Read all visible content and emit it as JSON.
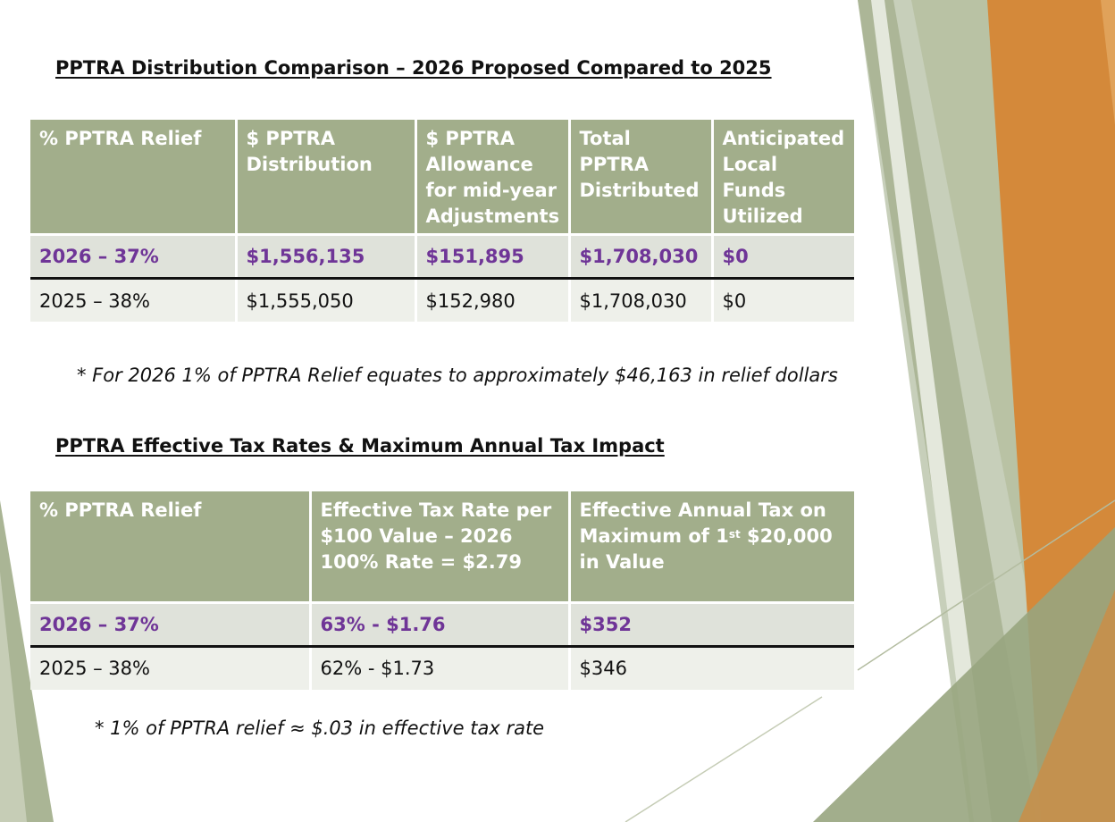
{
  "table1": {
    "title": "PPTRA Distribution Comparison – 2026 Proposed Compared to 2025",
    "headers": [
      "% PPTRA Relief",
      "$ PPTRA Distribution",
      "$ PPTRA Allowance for mid-year Adjustments",
      "Total PPTRA Distributed",
      "Anticipated Local Funds Utilized"
    ],
    "rows": [
      [
        "2026 – 37%",
        "$1,556,135",
        "$151,895",
        "$1,708,030",
        "$0"
      ],
      [
        "2025 – 38%",
        "$1,555,050",
        "$152,980",
        "$1,708,030",
        "$0"
      ]
    ],
    "footnote": "* For 2026 1% of PPTRA Relief equates to approximately $46,163 in relief dollars"
  },
  "table2": {
    "title": "PPTRA Effective Tax Rates & Maximum Annual Tax Impact",
    "headers": {
      "h0": "% PPTRA Relief",
      "h1": "Effective Tax Rate per $100 Value – 2026 100% Rate = $2.79",
      "h2_pre": "Effective Annual Tax on Maximum of 1",
      "h2_sup": "st",
      "h2_post": " $20,000 in Value"
    },
    "rows": [
      [
        "2026 – 37%",
        "63% - $1.76",
        "$352"
      ],
      [
        "2025 – 38%",
        "62% - $1.73",
        "$346"
      ]
    ],
    "footnote": "* 1% of PPTRA relief ≈ $.03 in effective tax rate"
  },
  "colors": {
    "header_bg": "#a2ae8b",
    "highlight_text": "#6f3597",
    "accent_orange": "#d4893a",
    "accent_green": "#9aa783"
  }
}
